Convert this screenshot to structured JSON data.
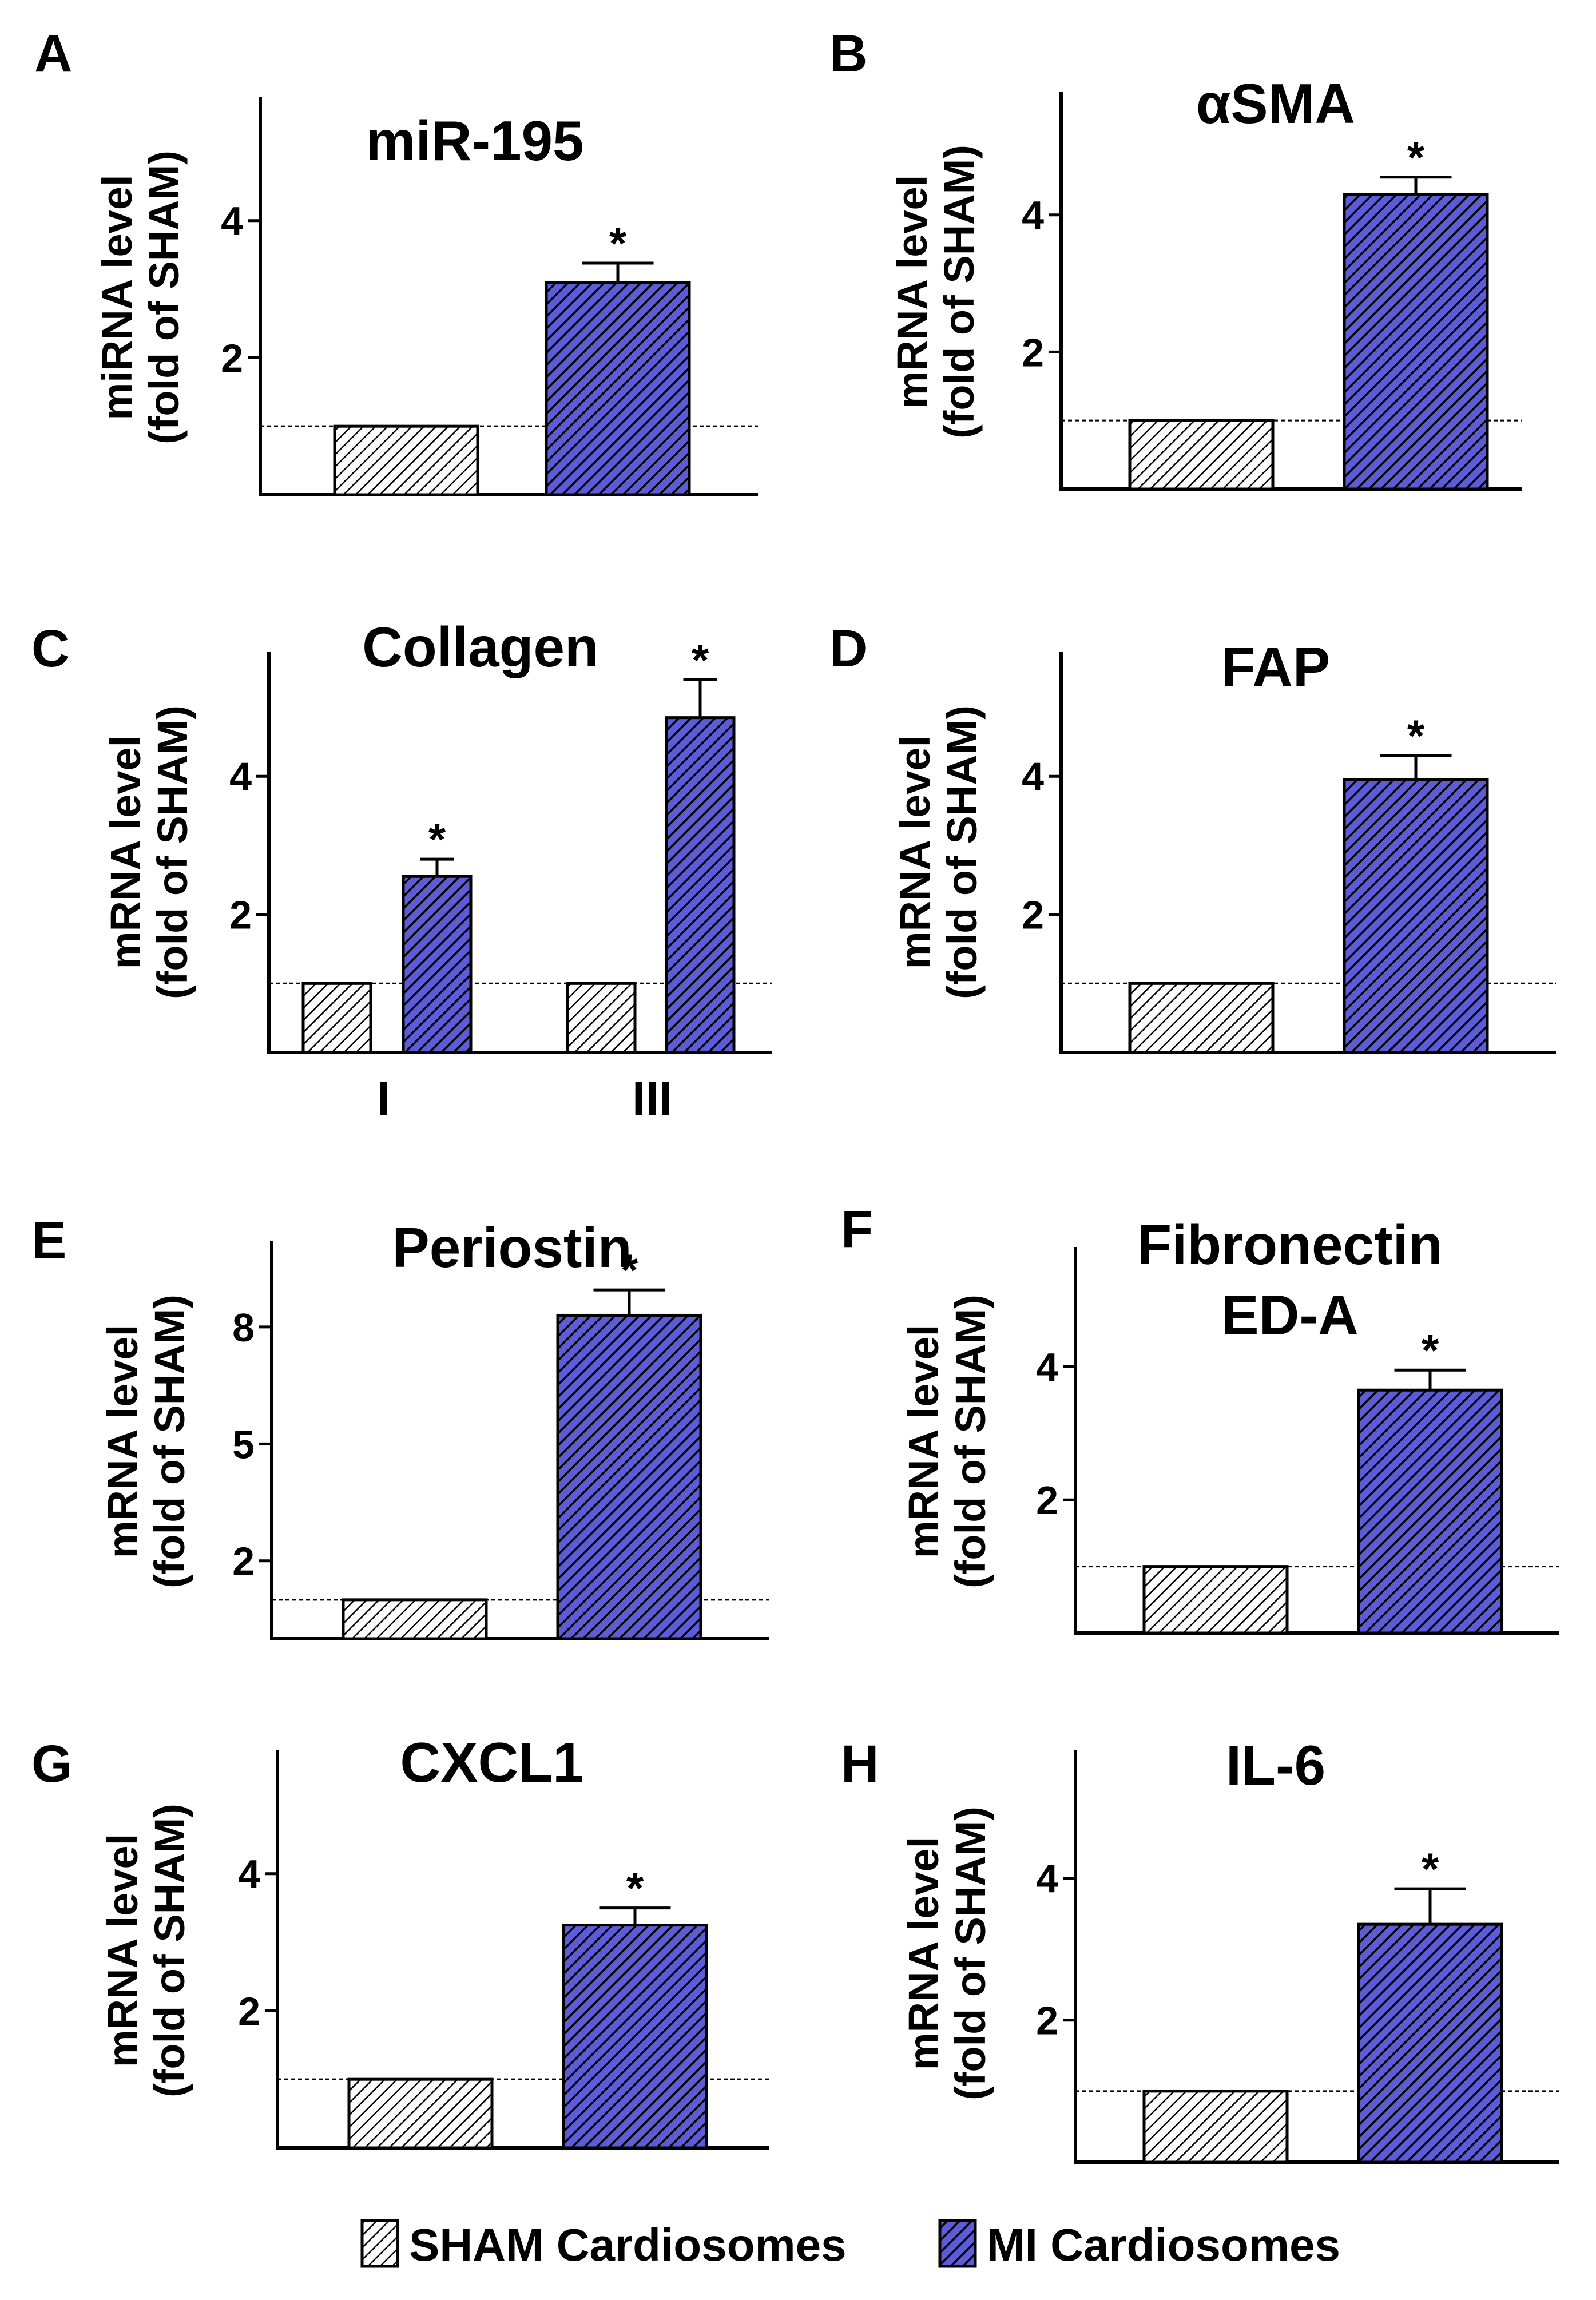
{
  "figure": {
    "legend": {
      "sham_label": "SHAM Cardiosomes",
      "mi_label": "MI Cardiosomes"
    },
    "colors": {
      "sham": "#ffffff",
      "mi": "#5c5cd6",
      "hatch": "#000000",
      "baseline": "#000000"
    }
  },
  "chart_data": [
    {
      "panel": "A",
      "type": "bar",
      "title": "miR-195",
      "ylabel": "miRNA level",
      "ylabel2": "(fold of SHAM)",
      "ylim": [
        0,
        5.8
      ],
      "yticks": [
        2,
        4
      ],
      "baseline": 1,
      "groups": [
        {
          "label": "",
          "sham": 1.0,
          "mi": 3.1,
          "mi_err": 0.28,
          "star": "*"
        }
      ]
    },
    {
      "panel": "B",
      "type": "bar",
      "title": "αSMA",
      "ylabel": "mRNA level",
      "ylabel2": "(fold of SHAM)",
      "ylim": [
        0,
        5.8
      ],
      "yticks": [
        2,
        4
      ],
      "baseline": 1,
      "groups": [
        {
          "label": "",
          "sham": 1.0,
          "mi": 4.3,
          "mi_err": 0.25,
          "star": "*"
        }
      ]
    },
    {
      "panel": "C",
      "type": "bar",
      "title": "Collagen",
      "ylabel": "mRNA level",
      "ylabel2": "(fold of SHAM)",
      "ylim": [
        0,
        5.8
      ],
      "yticks": [
        2,
        4
      ],
      "baseline": 1,
      "groups": [
        {
          "label": "I",
          "sham": 1.0,
          "mi": 2.55,
          "mi_err": 0.25,
          "star": "*"
        },
        {
          "label": "III",
          "sham": 1.0,
          "mi": 4.85,
          "mi_err": 0.55,
          "star": "*"
        }
      ]
    },
    {
      "panel": "D",
      "type": "bar",
      "title": "FAP",
      "ylabel": "mRNA level",
      "ylabel2": "(fold of SHAM)",
      "ylim": [
        0,
        5.8
      ],
      "yticks": [
        2,
        4
      ],
      "baseline": 1,
      "groups": [
        {
          "label": "",
          "sham": 1.0,
          "mi": 3.95,
          "mi_err": 0.35,
          "star": "*"
        }
      ]
    },
    {
      "panel": "E",
      "type": "bar",
      "title": "Periostin",
      "ylabel": "mRNA level",
      "ylabel2": "(fold of SHAM)",
      "ylim": [
        0,
        10.2
      ],
      "yticks": [
        2,
        5,
        8
      ],
      "baseline": 1,
      "groups": [
        {
          "label": "",
          "sham": 1.0,
          "mi": 8.3,
          "mi_err": 0.65,
          "star": "*"
        }
      ]
    },
    {
      "panel": "F",
      "type": "bar",
      "title": "Fibronectin",
      "title2": "ED-A",
      "ylabel": "mRNA level",
      "ylabel2": "(fold of SHAM)",
      "ylim": [
        0,
        5.8
      ],
      "yticks": [
        2,
        4
      ],
      "baseline": 1,
      "groups": [
        {
          "label": "",
          "sham": 1.0,
          "mi": 3.65,
          "mi_err": 0.3,
          "star": "*"
        }
      ]
    },
    {
      "panel": "G",
      "type": "bar",
      "title": "CXCL1",
      "ylabel": "mRNA level",
      "ylabel2": "(fold of SHAM)",
      "ylim": [
        0,
        5.8
      ],
      "yticks": [
        2,
        4
      ],
      "baseline": 1,
      "groups": [
        {
          "label": "",
          "sham": 1.0,
          "mi": 3.25,
          "mi_err": 0.25,
          "star": "*"
        }
      ]
    },
    {
      "panel": "H",
      "type": "bar",
      "title": "IL-6",
      "ylabel": "mRNA level",
      "ylabel2": "(fold of SHAM)",
      "ylim": [
        0,
        5.8
      ],
      "yticks": [
        2,
        4
      ],
      "baseline": 1,
      "groups": [
        {
          "label": "",
          "sham": 1.0,
          "mi": 3.35,
          "mi_err": 0.5,
          "star": "*"
        }
      ]
    }
  ]
}
